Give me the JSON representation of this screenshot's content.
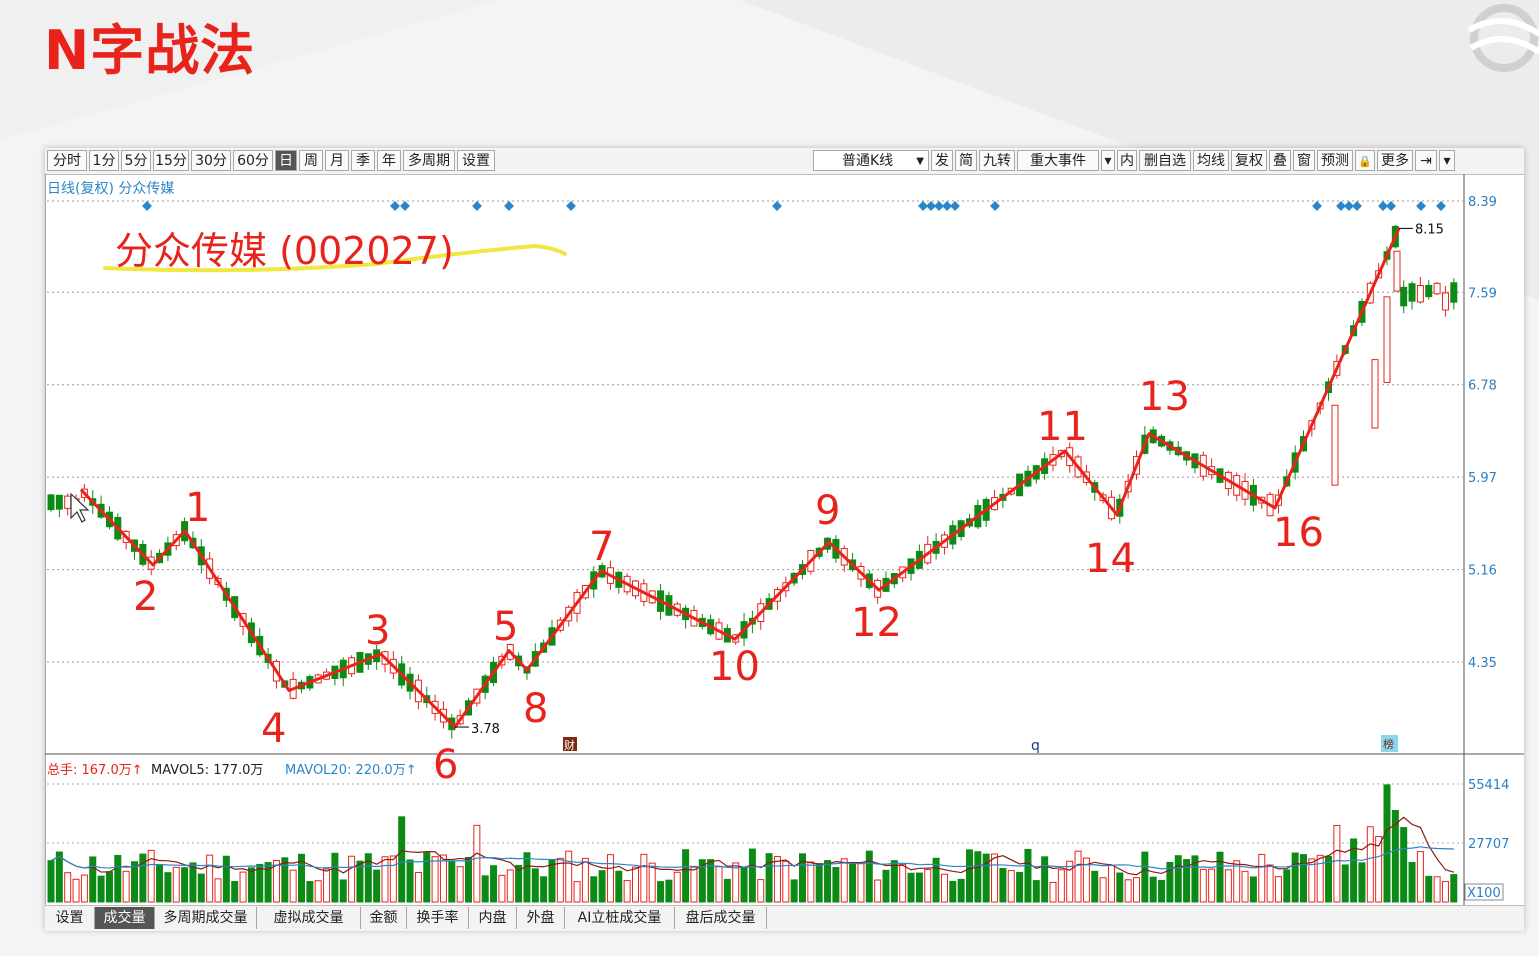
{
  "slide": {
    "title": "N字战法"
  },
  "toolbar": {
    "periods": [
      "分时",
      "1分",
      "5分",
      "15分",
      "30分",
      "60分",
      "日",
      "周",
      "月",
      "季",
      "年",
      "多周期",
      "设置"
    ],
    "active_period": "日",
    "kline_type": "普通K线",
    "tools": [
      "发",
      "简",
      "九转",
      "重大事件",
      "内",
      "删自选",
      "均线",
      "复权",
      "叠",
      "窗",
      "预测",
      "更多"
    ]
  },
  "chart_header": {
    "subtitle": "日线(复权) 分众传媒",
    "stock_label": "分众传媒 (002027)"
  },
  "price_axis": {
    "ticks": [
      "8.39",
      "7.59",
      "6.78",
      "5.97",
      "5.16",
      "4.35"
    ],
    "high_mark": "8.15",
    "low_mark": "3.78"
  },
  "wave_points": [
    {
      "label": "1",
      "price": 5.5
    },
    {
      "label": "2",
      "price": 5.2
    },
    {
      "label": "3",
      "price": 4.42
    },
    {
      "label": "4",
      "price": 4.1
    },
    {
      "label": "5",
      "price": 4.45
    },
    {
      "label": "6",
      "price": 3.78
    },
    {
      "label": "7",
      "price": 5.15
    },
    {
      "label": "8",
      "price": 4.3
    },
    {
      "label": "9",
      "price": 5.4
    },
    {
      "label": "10",
      "price": 4.55
    },
    {
      "label": "11",
      "price": 6.2
    },
    {
      "label": "12",
      "price": 4.98
    },
    {
      "label": "13",
      "price": 6.35
    },
    {
      "label": "14",
      "price": 5.64
    },
    {
      "label": "16",
      "price": 5.7
    }
  ],
  "event_markers": {
    "left": "财",
    "mid": "q",
    "right": "榜"
  },
  "volume_info": {
    "total": "总手: 167.0万↑",
    "mavol5": "MAVOL5: 177.0万",
    "mavol20": "MAVOL20: 220.0万↑"
  },
  "volume_axis": {
    "ticks": [
      "55414",
      "27707"
    ],
    "unit": "X100"
  },
  "bottom_tabs": [
    "设置",
    "成交量",
    "多周期成交量",
    "虚拟成交量",
    "金额",
    "换手率",
    "内盘",
    "外盘",
    "AI立桩成交量",
    "盘后成交量"
  ],
  "active_bottom_tab": "成交量",
  "chart_data": {
    "type": "candlestick",
    "price_range": [
      3.6,
      8.5
    ],
    "zigzag": [
      {
        "label": "",
        "price": 5.86
      },
      {
        "label": "2",
        "price": 5.2
      },
      {
        "label": "1",
        "price": 5.5
      },
      {
        "label": "4",
        "price": 4.1
      },
      {
        "label": "3",
        "price": 4.42
      },
      {
        "label": "6",
        "price": 3.78
      },
      {
        "label": "5",
        "price": 4.45
      },
      {
        "label": "8",
        "price": 4.28
      },
      {
        "label": "7",
        "price": 5.15
      },
      {
        "label": "10",
        "price": 4.55
      },
      {
        "label": "9",
        "price": 5.4
      },
      {
        "label": "12",
        "price": 4.98
      },
      {
        "label": "11",
        "price": 6.2
      },
      {
        "label": "14",
        "price": 5.64
      },
      {
        "label": "13",
        "price": 6.35
      },
      {
        "label": "16",
        "price": 5.7
      },
      {
        "label": "",
        "price": 8.15
      }
    ],
    "volume_max": 55414
  },
  "colors": {
    "up": "#e8231c",
    "down": "#0d8a16",
    "line": "#e8231c",
    "axis": "#2b7fc2"
  }
}
